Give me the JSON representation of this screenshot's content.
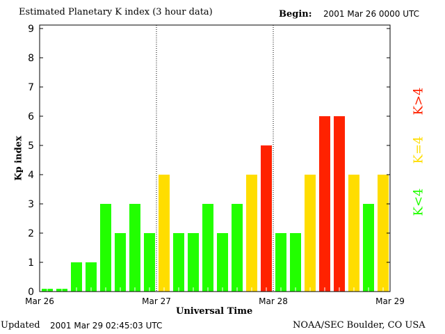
{
  "chart_data": {
    "type": "bar",
    "title": "Estimated Planetary K index (3 hour data)",
    "begin_label": "Begin:",
    "begin_value": "2001 Mar 26 0000 UTC",
    "xlabel": "Universal Time",
    "ylabel": "Kp index",
    "ylim": [
      0,
      9
    ],
    "yticks": [
      "0",
      "1",
      "2",
      "3",
      "4",
      "5",
      "6",
      "7",
      "8",
      "9"
    ],
    "xticks": [
      "Mar 26",
      "Mar 27",
      "Mar 28",
      "Mar 29"
    ],
    "values": [
      0,
      0,
      1,
      1,
      3,
      2,
      3,
      2,
      4,
      2,
      2,
      3,
      2,
      3,
      4,
      5,
      2,
      2,
      4,
      6,
      6,
      4,
      3,
      4
    ],
    "colors": {
      "low": "#22ff00",
      "mid": "#ffdd00",
      "high": "#ff2200"
    },
    "legend": [
      {
        "label": "K<4",
        "color": "#22ff00"
      },
      {
        "label": "K=4",
        "color": "#ffdd00"
      },
      {
        "label": "K>4",
        "color": "#ff2200"
      }
    ],
    "footer_left_label": "Updated",
    "footer_left_value": "2001 Mar 29 02:45:03 UTC",
    "footer_right": "NOAA/SEC Boulder, CO USA"
  }
}
